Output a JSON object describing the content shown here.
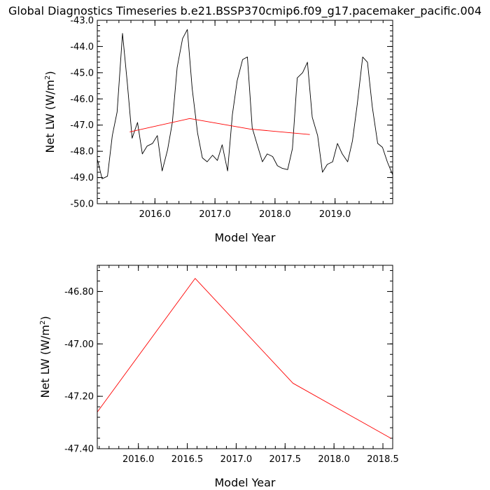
{
  "chart_data": [
    {
      "type": "line",
      "title": "Global Diagnostics Timeseries b.e21.BSSP370cmip6.f09_g17.pacemaker_pacific.004",
      "xlabel": "Model Year",
      "ylabel": "Net LW (W/m",
      "ylabel_sup": "2",
      "ylabel_close": ")",
      "xlim": [
        2015.04,
        2019.96
      ],
      "ylim": [
        -50.0,
        -43.0
      ],
      "xticks": [
        2016.0,
        2017.0,
        2018.0,
        2019.0
      ],
      "xtick_labels": [
        "2016.0",
        "2017.0",
        "2018.0",
        "2019.0"
      ],
      "yticks": [
        -50.0,
        -49.0,
        -48.0,
        -47.0,
        -46.0,
        -45.0,
        -44.0,
        -43.0
      ],
      "ytick_labels": [
        "-50.0",
        "-49.0",
        "-48.0",
        "-47.0",
        "-46.0",
        "-45.0",
        "-44.0",
        "-43.0"
      ],
      "series": [
        {
          "color": "#000000",
          "x": [
            2015.04,
            2015.12,
            2015.21,
            2015.29,
            2015.37,
            2015.46,
            2015.54,
            2015.62,
            2015.71,
            2015.79,
            2015.87,
            2015.96,
            2016.04,
            2016.12,
            2016.21,
            2016.29,
            2016.37,
            2016.46,
            2016.54,
            2016.62,
            2016.71,
            2016.79,
            2016.87,
            2016.96,
            2017.04,
            2017.12,
            2017.21,
            2017.29,
            2017.37,
            2017.46,
            2017.54,
            2017.62,
            2017.71,
            2017.79,
            2017.87,
            2017.96,
            2018.04,
            2018.12,
            2018.21,
            2018.29,
            2018.37,
            2018.46,
            2018.54,
            2018.62,
            2018.71,
            2018.79,
            2018.87,
            2018.96,
            2019.04,
            2019.12,
            2019.21,
            2019.29,
            2019.37,
            2019.46,
            2019.54,
            2019.62,
            2019.71,
            2019.79,
            2019.87,
            2019.96
          ],
          "values": [
            -48.3,
            -49.05,
            -48.95,
            -47.4,
            -46.5,
            -43.5,
            -45.4,
            -47.5,
            -46.9,
            -48.1,
            -47.8,
            -47.7,
            -47.4,
            -48.75,
            -47.95,
            -46.9,
            -44.8,
            -43.7,
            -43.35,
            -45.6,
            -47.3,
            -48.25,
            -48.4,
            -48.15,
            -48.35,
            -47.75,
            -48.75,
            -46.6,
            -45.3,
            -44.5,
            -44.4,
            -47.1,
            -47.8,
            -48.4,
            -48.1,
            -48.2,
            -48.55,
            -48.65,
            -48.7,
            -47.9,
            -45.2,
            -45.0,
            -44.6,
            -46.7,
            -47.4,
            -48.8,
            -48.5,
            -48.4,
            -47.7,
            -48.1,
            -48.4,
            -47.6,
            -46.2,
            -44.4,
            -44.6,
            -46.3,
            -47.7,
            -47.85,
            -48.4,
            -48.9
          ]
        },
        {
          "color": "#ff0000",
          "x": [
            2015.58,
            2016.58,
            2017.58,
            2018.58
          ],
          "values": [
            -47.26,
            -46.75,
            -47.15,
            -47.36
          ]
        }
      ]
    },
    {
      "type": "line",
      "xlabel": "Model Year",
      "ylabel": "Net LW (W/m",
      "ylabel_sup": "2",
      "ylabel_close": ")",
      "xlim": [
        2015.58,
        2018.6
      ],
      "ylim": [
        -47.4,
        -46.7
      ],
      "xticks": [
        2016.0,
        2016.5,
        2017.0,
        2017.5,
        2018.0,
        2018.5
      ],
      "xtick_labels": [
        "2016.0",
        "2016.5",
        "2017.0",
        "2017.5",
        "2018.0",
        "2018.5"
      ],
      "yticks": [
        -47.4,
        -47.2,
        -47.0,
        -46.8
      ],
      "ytick_labels": [
        "-47.40",
        "-47.20",
        "-47.00",
        "-46.80"
      ],
      "series": [
        {
          "color": "#ff0000",
          "x": [
            2015.58,
            2016.58,
            2017.58,
            2018.58
          ],
          "values": [
            -47.26,
            -46.75,
            -47.15,
            -47.36
          ]
        }
      ]
    }
  ]
}
